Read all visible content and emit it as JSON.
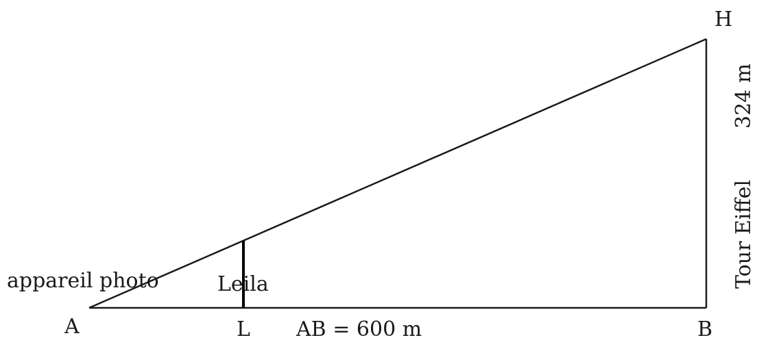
{
  "points": {
    "A": "A",
    "B": "B",
    "H": "H",
    "L": "L"
  },
  "labels": {
    "camera": "appareil photo",
    "person": "Leila",
    "base_length": "AB = 600 m",
    "tower_name": "Tour Eiffel",
    "tower_height": "324 m"
  },
  "colors": {
    "stroke": "#1a1a1a",
    "background": "#ffffff"
  }
}
